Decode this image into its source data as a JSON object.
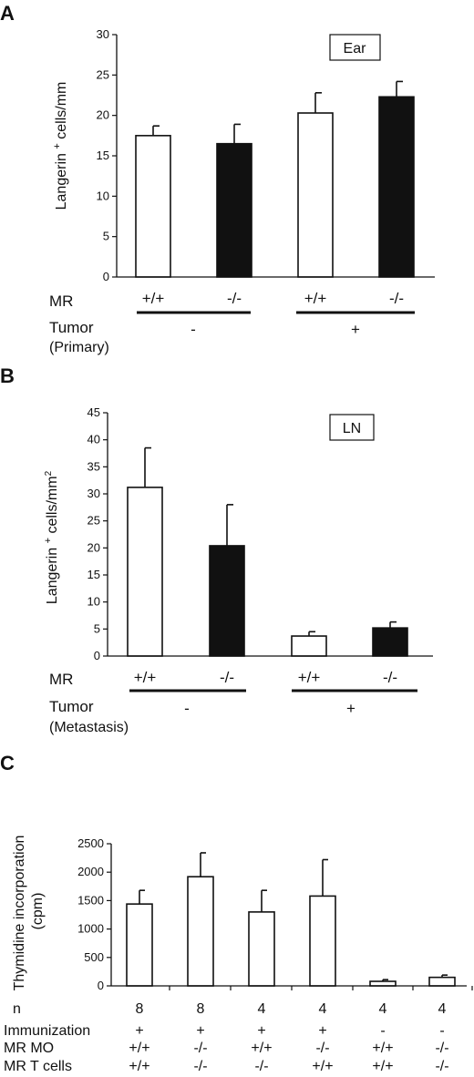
{
  "chart_data": [
    {
      "type": "bar",
      "panel": "A",
      "ylabel": "Langerin + cells/mm",
      "ylim": [
        0,
        30
      ],
      "yticks": [
        "0",
        "5",
        "10",
        "15",
        "20",
        "25",
        "30"
      ],
      "legend_box": "Ear",
      "row_label_1": "MR",
      "row_label_2a": "Tumor",
      "row_label_2b": "(Primary)",
      "series": [
        {
          "category": "+/+",
          "value": 17.5,
          "error": 1.2,
          "fill": "white"
        },
        {
          "category": "-/-",
          "value": 16.5,
          "error": 2.4,
          "fill": "black"
        },
        {
          "category": "+/+",
          "value": 20.3,
          "error": 2.5,
          "fill": "white"
        },
        {
          "category": "-/-",
          "value": 22.3,
          "error": 1.9,
          "fill": "black"
        }
      ],
      "groups": [
        "-",
        "+"
      ]
    },
    {
      "type": "bar",
      "panel": "B",
      "ylabel": "Langerin + cells/mm2",
      "ylim": [
        0,
        45
      ],
      "yticks": [
        "0",
        "5",
        "10",
        "15",
        "20",
        "25",
        "30",
        "35",
        "40",
        "45"
      ],
      "legend_box": "LN",
      "row_label_1": "MR",
      "row_label_2a": "Tumor",
      "row_label_2b": "(Metastasis)",
      "series": [
        {
          "category": "+/+",
          "value": 31.2,
          "error": 7.3,
          "fill": "white"
        },
        {
          "category": "-/-",
          "value": 20.4,
          "error": 7.6,
          "fill": "black"
        },
        {
          "category": "+/+",
          "value": 3.7,
          "error": 0.8,
          "fill": "white"
        },
        {
          "category": "-/-",
          "value": 5.2,
          "error": 1.1,
          "fill": "black"
        }
      ],
      "groups": [
        "-",
        "+"
      ]
    },
    {
      "type": "bar",
      "panel": "C",
      "ylabel_1": "Thymidine incorporation",
      "ylabel_2": "(cpm)",
      "ylim": [
        0,
        2500
      ],
      "yticks": [
        "0",
        "500",
        "1000",
        "1500",
        "2000",
        "2500"
      ],
      "rows": [
        {
          "label": "n",
          "values": [
            "8",
            "8",
            "4",
            "4",
            "4",
            "4"
          ]
        },
        {
          "label": "Immunization",
          "values": [
            "+",
            "+",
            "+",
            "+",
            "-",
            "-"
          ]
        },
        {
          "label": "MR MO",
          "values": [
            "+/+",
            "-/-",
            "+/+",
            "-/-",
            "+/+",
            "-/-"
          ]
        },
        {
          "label": "MR T cells",
          "values": [
            "+/+",
            "-/-",
            "-/-",
            "+/+",
            "+/+",
            "-/-"
          ]
        }
      ],
      "values": [
        1440,
        1920,
        1300,
        1580,
        80,
        150
      ],
      "errors": [
        240,
        420,
        380,
        640,
        30,
        40
      ]
    }
  ]
}
